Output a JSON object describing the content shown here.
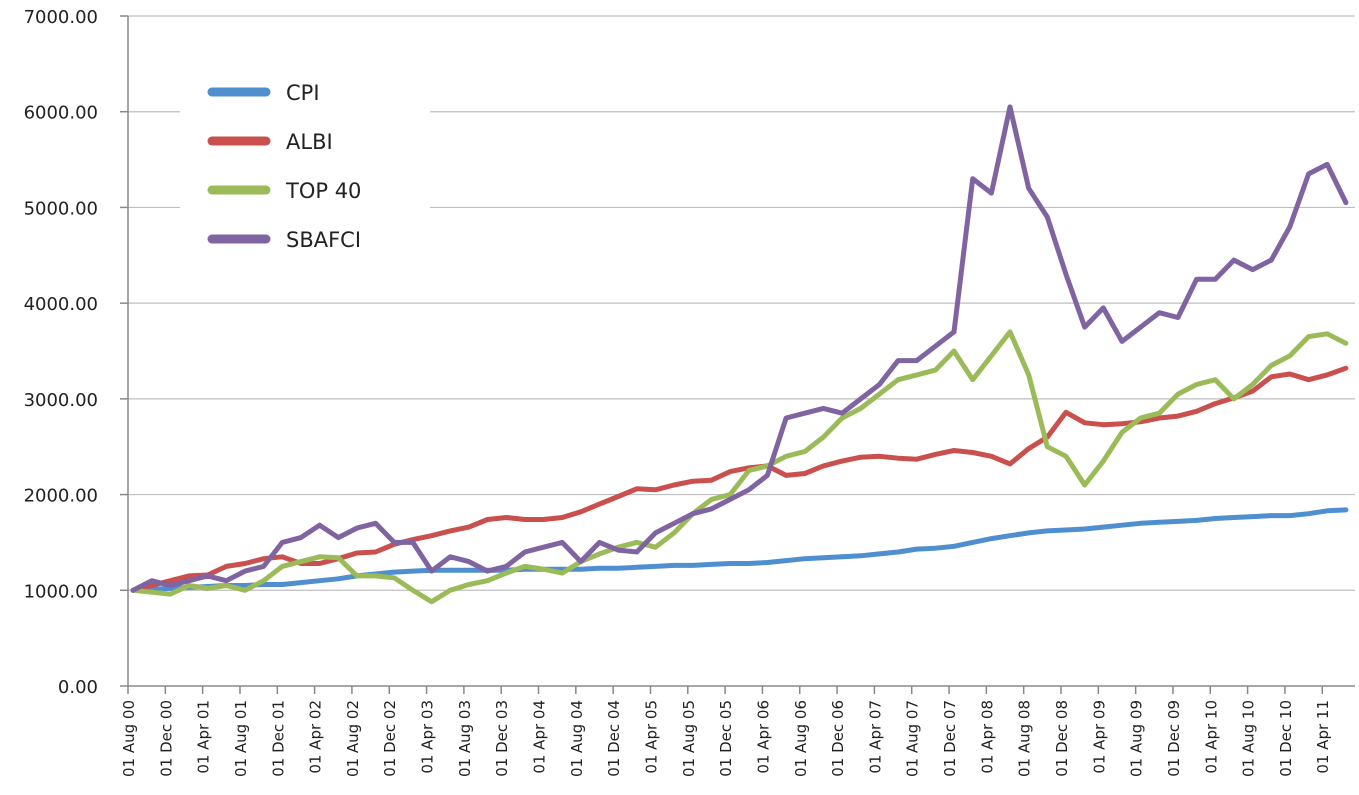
{
  "chart_data": {
    "type": "line",
    "categories": [
      "01 Aug 00",
      null,
      "01 Dec 00",
      null,
      "01 Apr 01",
      null,
      "01 Aug 01",
      null,
      "01 Dec 01",
      null,
      "01 Apr 02",
      null,
      "01 Aug 02",
      null,
      "01 Dec 02",
      null,
      "01 Apr 03",
      null,
      "01 Aug 03",
      null,
      "01 Dec 03",
      null,
      "01 Apr 04",
      null,
      "01 Aug 04",
      null,
      "01 Dec 04",
      null,
      "01 Apr 05",
      null,
      "01 Aug 05",
      null,
      "01 Dec 05",
      null,
      "01 Apr 06",
      null,
      "01 Aug 06",
      null,
      "01 Dec 06",
      null,
      "01 Apr 07",
      null,
      "01 Aug 07",
      null,
      "01 Dec 07",
      null,
      "01 Apr 08",
      null,
      "01 Aug 08",
      null,
      "01 Dec 08",
      null,
      "01 Apr 09",
      null,
      "01 Aug 09",
      null,
      "01 Dec 09",
      null,
      "01 Apr 10",
      null,
      "01 Aug 10",
      null,
      "01 Dec 10",
      null,
      "01 Apr 11",
      null
    ],
    "series": [
      {
        "name": "CPI",
        "color": "#4f8fd0",
        "values": [
          1000,
          1010,
          1020,
          1030,
          1040,
          1050,
          1050,
          1060,
          1060,
          1080,
          1100,
          1120,
          1150,
          1170,
          1190,
          1200,
          1210,
          1210,
          1210,
          1210,
          1210,
          1220,
          1220,
          1220,
          1220,
          1230,
          1230,
          1240,
          1250,
          1260,
          1260,
          1270,
          1280,
          1280,
          1290,
          1310,
          1330,
          1340,
          1350,
          1360,
          1380,
          1400,
          1430,
          1440,
          1460,
          1500,
          1540,
          1570,
          1600,
          1620,
          1630,
          1640,
          1660,
          1680,
          1700,
          1710,
          1720,
          1730,
          1750,
          1760,
          1770,
          1780,
          1780,
          1800,
          1830,
          1840
        ]
      },
      {
        "name": "ALBI",
        "color": "#c9504c",
        "values": [
          1000,
          1050,
          1100,
          1150,
          1160,
          1250,
          1280,
          1330,
          1350,
          1280,
          1280,
          1330,
          1390,
          1400,
          1480,
          1530,
          1570,
          1620,
          1660,
          1740,
          1760,
          1740,
          1740,
          1760,
          1820,
          1900,
          1980,
          2060,
          2050,
          2100,
          2140,
          2150,
          2240,
          2280,
          2300,
          2200,
          2220,
          2300,
          2350,
          2390,
          2400,
          2380,
          2370,
          2420,
          2460,
          2440,
          2400,
          2320,
          2480,
          2600,
          2860,
          2750,
          2730,
          2740,
          2760,
          2800,
          2820,
          2870,
          2950,
          3010,
          3080,
          3230,
          3260,
          3200,
          3250,
          3320
        ]
      },
      {
        "name": "TOP 40",
        "color": "#9bbb59",
        "values": [
          1000,
          980,
          960,
          1050,
          1020,
          1050,
          1000,
          1100,
          1250,
          1300,
          1350,
          1340,
          1150,
          1150,
          1130,
          1000,
          880,
          1000,
          1060,
          1100,
          1180,
          1250,
          1220,
          1180,
          1300,
          1380,
          1450,
          1500,
          1450,
          1600,
          1800,
          1950,
          2000,
          2250,
          2300,
          2400,
          2450,
          2600,
          2800,
          2900,
          3050,
          3200,
          3250,
          3300,
          3500,
          3200,
          3450,
          3700,
          3250,
          2500,
          2400,
          2100,
          2350,
          2650,
          2800,
          2850,
          3050,
          3150,
          3200,
          3000,
          3150,
          3350,
          3450,
          3650,
          3680,
          3580
        ]
      },
      {
        "name": "SBAFCI",
        "color": "#8064a2",
        "values": [
          1000,
          1100,
          1050,
          1100,
          1150,
          1100,
          1200,
          1250,
          1500,
          1550,
          1680,
          1550,
          1650,
          1700,
          1500,
          1500,
          1200,
          1350,
          1300,
          1200,
          1250,
          1400,
          1450,
          1500,
          1300,
          1500,
          1420,
          1400,
          1600,
          1700,
          1800,
          1850,
          1950,
          2050,
          2200,
          2800,
          2850,
          2900,
          2850,
          3000,
          3150,
          3400,
          3400,
          3550,
          3700,
          5300,
          5150,
          6050,
          5200,
          4900,
          4300,
          3750,
          3950,
          3600,
          3750,
          3900,
          3850,
          4250,
          4250,
          4450,
          4350,
          4450,
          4800,
          5350,
          5450,
          5050
        ]
      }
    ],
    "ylim": [
      0,
      7000
    ],
    "yticks": [
      {
        "value": 0,
        "label": "0.00"
      },
      {
        "value": 1000,
        "label": "1000.00"
      },
      {
        "value": 2000,
        "label": "2000.00"
      },
      {
        "value": 3000,
        "label": "3000.00"
      },
      {
        "value": 4000,
        "label": "4000.00"
      },
      {
        "value": 5000,
        "label": "5000.00"
      },
      {
        "value": 6000,
        "label": "6000.00"
      },
      {
        "value": 7000,
        "label": "7000.00"
      }
    ],
    "grid": true,
    "legend": "upper left"
  }
}
